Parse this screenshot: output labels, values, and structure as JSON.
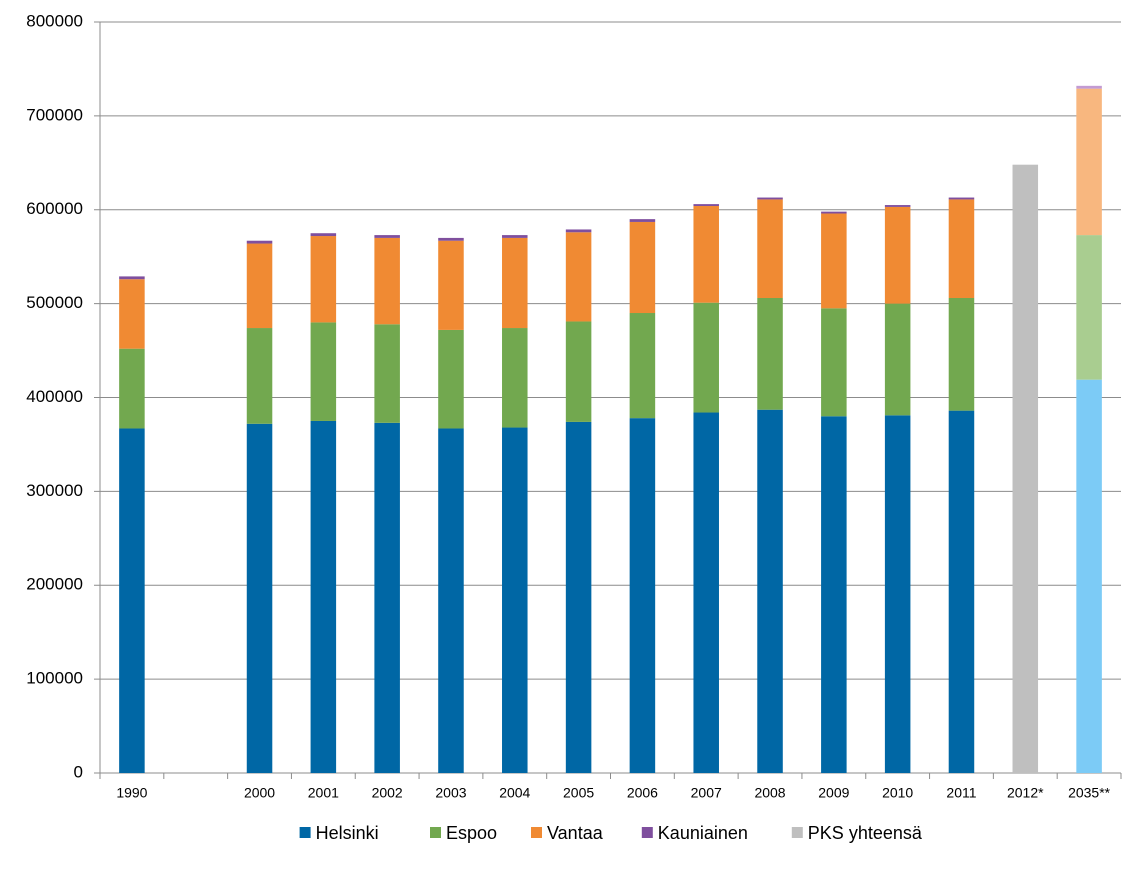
{
  "chart_data": {
    "type": "stacked_bar",
    "categories": [
      "1990",
      null,
      "2000",
      "2001",
      "2002",
      "2003",
      "2004",
      "2005",
      "2006",
      "2007",
      "2008",
      "2009",
      "2010",
      "2011",
      "2012*",
      "2035**"
    ],
    "series": [
      {
        "name": "Helsinki",
        "color": "#0067a5",
        "last_color": "#7ccbf6",
        "values": [
          367000,
          null,
          372000,
          375000,
          373000,
          367000,
          368000,
          374000,
          378000,
          384000,
          387000,
          380000,
          381000,
          386000,
          null,
          419000
        ]
      },
      {
        "name": "Espoo",
        "color": "#72a84f",
        "last_color": "#a9cd90",
        "values": [
          85000,
          null,
          102000,
          105000,
          105000,
          105000,
          106000,
          107000,
          112000,
          117000,
          119000,
          115000,
          119000,
          120000,
          null,
          154000
        ]
      },
      {
        "name": "Vantaa",
        "color": "#f08a33",
        "last_color": "#f8b77f",
        "values": [
          74000,
          null,
          90000,
          92000,
          92000,
          95000,
          96000,
          95000,
          97000,
          103000,
          105000,
          101000,
          103000,
          105000,
          null,
          156000
        ]
      },
      {
        "name": "Kauniainen",
        "color": "#7f4f9e",
        "last_color": "#c39bd3",
        "values": [
          3000,
          null,
          3000,
          3000,
          3000,
          3000,
          3000,
          3000,
          3000,
          2000,
          2000,
          2000,
          2000,
          2000,
          null,
          3000
        ]
      },
      {
        "name": "PKS yhteensä",
        "color": "#bfbfbf",
        "values": [
          null,
          null,
          null,
          null,
          null,
          null,
          null,
          null,
          null,
          null,
          null,
          null,
          null,
          null,
          648000,
          null
        ]
      }
    ],
    "ylim": [
      0,
      800000
    ],
    "yticks": [
      0,
      100000,
      200000,
      300000,
      400000,
      500000,
      600000,
      700000,
      800000
    ],
    "grid": true,
    "legend": "bottom"
  }
}
